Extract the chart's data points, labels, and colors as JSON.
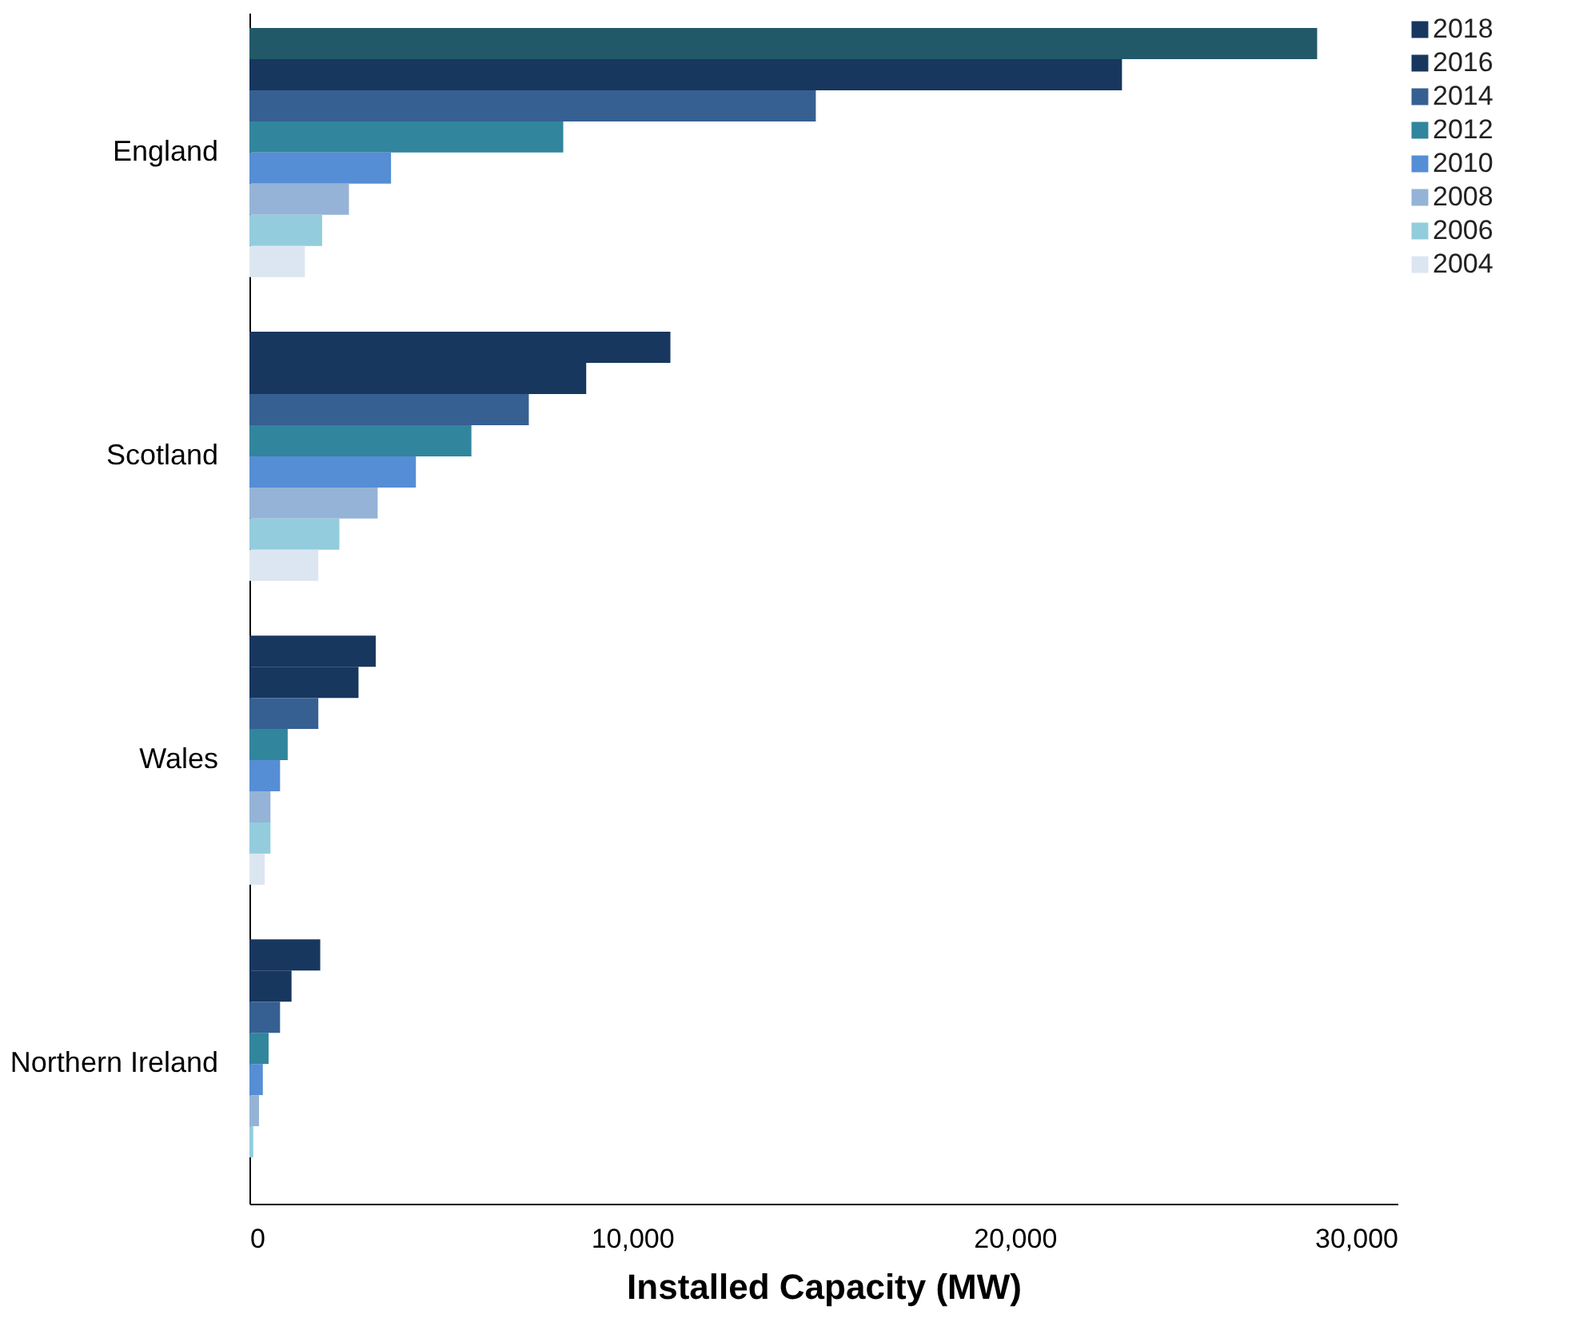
{
  "chart_data": {
    "type": "bar",
    "orientation": "horizontal",
    "categories": [
      "England",
      "Scotland",
      "Wales",
      "Northern Ireland"
    ],
    "series": [
      {
        "name": "2018",
        "color": "#17375e",
        "colors": [
          "#215968",
          "#17375e",
          "#17375e",
          "#17375e"
        ],
        "values": [
          27900,
          11000,
          3300,
          1850
        ]
      },
      {
        "name": "2016",
        "color": "#17375e",
        "values": [
          22800,
          8800,
          2850,
          1100
        ]
      },
      {
        "name": "2014",
        "color": "#366092",
        "values": [
          14800,
          7300,
          1800,
          800
        ]
      },
      {
        "name": "2012",
        "color": "#31859c",
        "values": [
          8200,
          5800,
          1000,
          500
        ]
      },
      {
        "name": "2010",
        "color": "#558ed5",
        "values": [
          3700,
          4350,
          800,
          350
        ]
      },
      {
        "name": "2008",
        "color": "#95b3d7",
        "values": [
          2600,
          3350,
          550,
          250
        ]
      },
      {
        "name": "2006",
        "color": "#93cddd",
        "values": [
          1900,
          2350,
          550,
          100
        ]
      },
      {
        "name": "2004",
        "color": "#dce6f2",
        "values": [
          1450,
          1800,
          400,
          null
        ]
      }
    ],
    "xlabel": "Installed Capacity (MW)",
    "xlim": [
      0,
      30000
    ],
    "xticks": [
      0,
      {
        "value": 10000,
        "label": "10,000"
      },
      {
        "value": 20000,
        "label": "20,000"
      },
      {
        "value": 30000,
        "label": "30,000"
      }
    ],
    "grid": false,
    "legend": "top right"
  }
}
